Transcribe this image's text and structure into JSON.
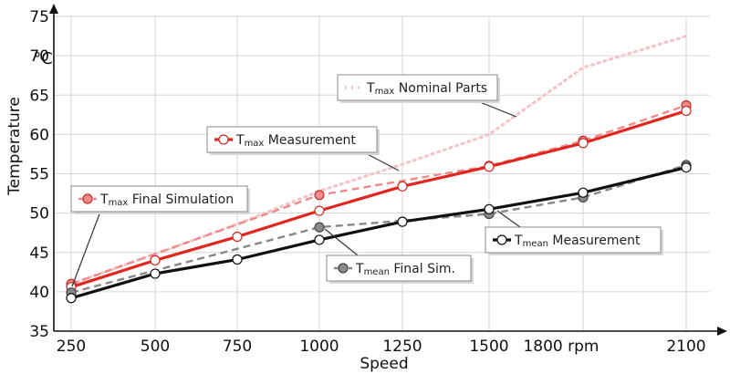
{
  "chart_data": {
    "type": "line",
    "xlabel": "Speed",
    "ylabel": "Temperature",
    "yunit": "°C",
    "x": [
      250,
      500,
      750,
      1000,
      1250,
      1500,
      1800,
      2100
    ],
    "xtick_labels": [
      "250",
      "500",
      "750",
      "1000",
      "1250",
      "1500",
      "1800 rpm",
      "2100"
    ],
    "yticks": [
      35,
      40,
      45,
      50,
      55,
      60,
      65,
      70,
      75
    ],
    "ylim": [
      35,
      75
    ],
    "grid": true,
    "series": [
      {
        "key": "tmax_nominal",
        "name": "Tmax Nominal Parts",
        "name_main": "T",
        "name_sub": "max",
        "name_rest": " Nominal Parts",
        "color": "#f5c4c8",
        "style": "dotted",
        "marker": "none",
        "x": [
          250,
          500,
          750,
          1000,
          1250,
          1500,
          1800,
          2100
        ],
        "values": [
          41.0,
          44.8,
          48.6,
          52.8,
          56.2,
          60.0,
          68.5,
          72.5
        ]
      },
      {
        "key": "tmax_final_sim",
        "name": "Tmax Final Simulation",
        "name_main": "T",
        "name_sub": "max",
        "name_rest": " Final Simulation",
        "color": "#ef8a8a",
        "style": "dashed",
        "marker": "filled",
        "x": [
          250,
          1000,
          1500,
          1800,
          2100
        ],
        "values": [
          41.0,
          52.3,
          56.0,
          59.2,
          63.7
        ]
      },
      {
        "key": "tmax_measurement",
        "name": "Tmax Measurement",
        "name_main": "T",
        "name_sub": "max",
        "name_rest": " Measurement",
        "color": "#e0261f",
        "style": "solid",
        "marker": "open",
        "x": [
          250,
          500,
          750,
          1000,
          1250,
          1500,
          1800,
          2100
        ],
        "values": [
          40.6,
          44.0,
          47.0,
          50.3,
          53.4,
          55.9,
          58.9,
          63.0
        ]
      },
      {
        "key": "tmean_final_sim",
        "name": "Tmean Final Sim.",
        "name_main": "T",
        "name_sub": "mean",
        "name_rest": " Final Sim.",
        "color": "#888888",
        "style": "dashed",
        "marker": "filled",
        "x": [
          250,
          1000,
          1500,
          1800,
          2100
        ],
        "values": [
          39.9,
          48.2,
          49.9,
          52.0,
          56.1
        ]
      },
      {
        "key": "tmean_measurement",
        "name": "Tmean Measurement",
        "name_main": "T",
        "name_sub": "mean",
        "name_rest": " Measurement",
        "color": "#111111",
        "style": "solid",
        "marker": "open",
        "x": [
          250,
          500,
          750,
          1000,
          1250,
          1500,
          1800,
          2100
        ],
        "values": [
          39.2,
          42.3,
          44.1,
          46.6,
          48.9,
          50.5,
          52.6,
          55.8
        ]
      }
    ]
  }
}
